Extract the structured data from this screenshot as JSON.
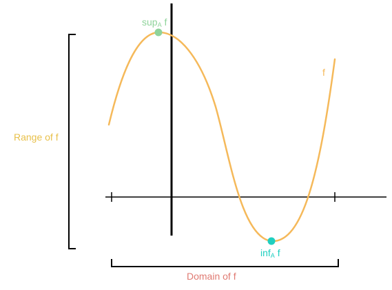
{
  "labels": {
    "sup_main": "sup",
    "sup_sub": "A",
    "sup_tail": " f",
    "inf_main": "inf",
    "inf_sub": "A",
    "inf_tail": " f",
    "curve": "f",
    "range": "Range of f",
    "domain": "Domain of f"
  },
  "colors": {
    "curve": "#f5b95a",
    "sup": "#8fd39a",
    "inf": "#1fcfc0",
    "range": "#e8c04a",
    "domain": "#e07a72",
    "axes": "#000000"
  }
}
